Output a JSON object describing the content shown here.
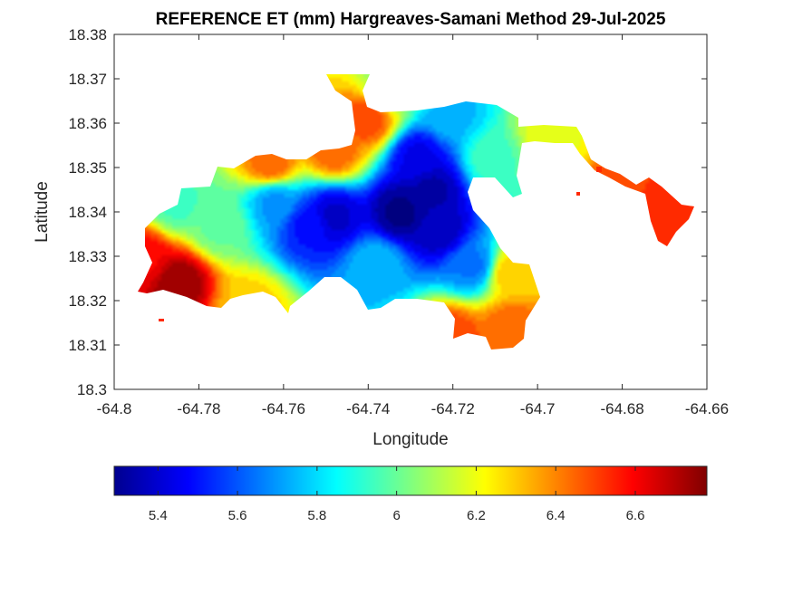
{
  "figure": {
    "title": "REFERENCE ET (mm) Hargreaves-Samani Method  29-Jul-2025",
    "xlabel": "Longitude",
    "ylabel": "Latitude"
  },
  "axes": {
    "x_ticks": [
      "-64.8",
      "-64.78",
      "-64.76",
      "-64.74",
      "-64.72",
      "-64.7",
      "-64.68",
      "-64.66"
    ],
    "y_ticks": [
      "18.3",
      "18.31",
      "18.32",
      "18.33",
      "18.34",
      "18.35",
      "18.36",
      "18.37",
      "18.38"
    ],
    "xlim": [
      -64.8,
      -64.66
    ],
    "ylim": [
      18.3,
      18.38
    ]
  },
  "colorbar": {
    "colormap": "jet",
    "range": [
      5.29,
      6.78
    ],
    "ticks": [
      "5.4",
      "5.6",
      "5.8",
      "6",
      "6.2",
      "6.4",
      "6.6"
    ],
    "orientation": "horizontal",
    "placement": "below-axes"
  },
  "chart_data": {
    "type": "heatmap",
    "variable": "REFERENCE ET (mm)",
    "method": "Hargreaves-Samani",
    "date": "29-Jul-2025",
    "x_range": [
      -64.8,
      -64.66
    ],
    "y_range": [
      18.3,
      18.38
    ],
    "value_range": [
      5.29,
      6.78
    ],
    "hotspots": [
      {
        "lon": -64.785,
        "lat": 18.324,
        "value": 6.75
      },
      {
        "lon": -64.793,
        "lat": 18.329,
        "value": 6.6
      },
      {
        "lon": -64.72,
        "lat": 18.312,
        "value": 6.5
      },
      {
        "lon": -64.706,
        "lat": 18.314,
        "value": 6.45
      },
      {
        "lon": -64.671,
        "lat": 18.338,
        "value": 6.55
      },
      {
        "lon": -64.68,
        "lat": 18.344,
        "value": 6.5
      },
      {
        "lon": -64.74,
        "lat": 18.361,
        "value": 6.5
      },
      {
        "lon": -64.748,
        "lat": 18.354,
        "value": 6.45
      },
      {
        "lon": -64.763,
        "lat": 18.351,
        "value": 6.45
      },
      {
        "lon": -64.768,
        "lat": 18.318,
        "value": 6.3
      },
      {
        "lon": -64.706,
        "lat": 18.326,
        "value": 6.3
      },
      {
        "lon": -64.697,
        "lat": 18.357,
        "value": 6.2
      },
      {
        "lon": -64.775,
        "lat": 18.337,
        "value": 6.0
      },
      {
        "lon": -64.732,
        "lat": 18.34,
        "value": 5.3
      },
      {
        "lon": -64.725,
        "lat": 18.345,
        "value": 5.35
      },
      {
        "lon": -64.723,
        "lat": 18.336,
        "value": 5.38
      },
      {
        "lon": -64.728,
        "lat": 18.352,
        "value": 5.45
      },
      {
        "lon": -64.748,
        "lat": 18.339,
        "value": 5.4
      },
      {
        "lon": -64.754,
        "lat": 18.337,
        "value": 5.5
      },
      {
        "lon": -64.762,
        "lat": 18.342,
        "value": 5.7
      },
      {
        "lon": -64.738,
        "lat": 18.328,
        "value": 5.75
      },
      {
        "lon": -64.715,
        "lat": 18.328,
        "value": 5.65
      },
      {
        "lon": -64.72,
        "lat": 18.362,
        "value": 5.75
      },
      {
        "lon": -64.735,
        "lat": 18.368,
        "value": 6.05
      },
      {
        "lon": -64.785,
        "lat": 18.342,
        "value": 5.95
      },
      {
        "lon": -64.71,
        "lat": 18.352,
        "value": 5.95
      }
    ]
  }
}
